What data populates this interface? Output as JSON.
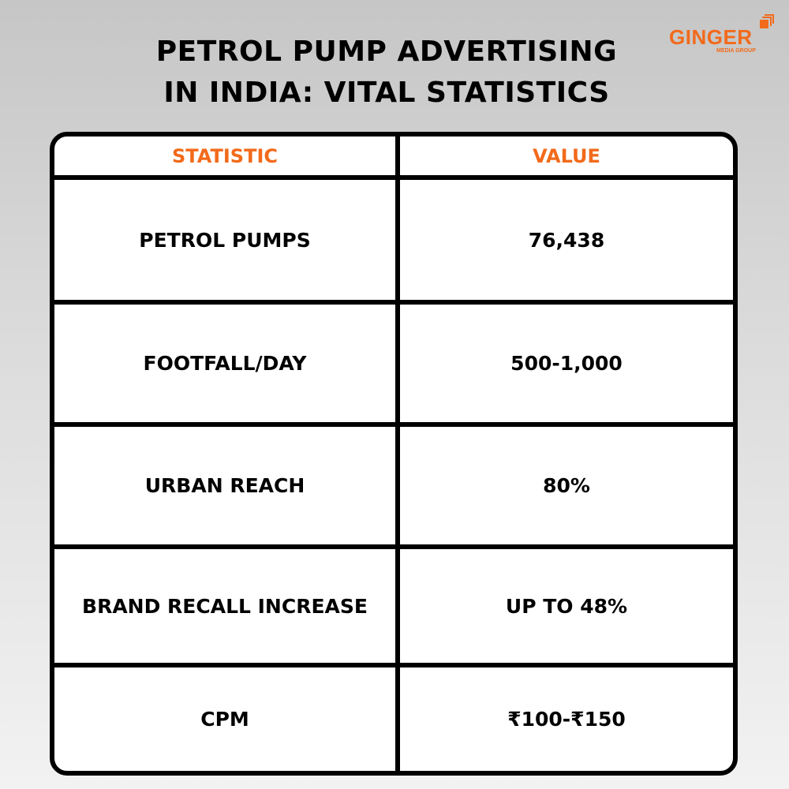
{
  "title": {
    "line1": "PETROL PUMP ADVERTISING",
    "line2": "IN INDIA: VITAL STATISTICS"
  },
  "logo": {
    "text": "GINGER",
    "subtext": "MEDIA GROUP"
  },
  "colors": {
    "accent": "#f26a1b",
    "border": "#000000"
  },
  "table": {
    "headers": [
      "STATISTIC",
      "VALUE"
    ],
    "rows": [
      [
        "PETROL PUMPS",
        "76,438"
      ],
      [
        "FOOTFALL/DAY",
        "500-1,000"
      ],
      [
        "URBAN REACH",
        "80%"
      ],
      [
        "BRAND RECALL INCREASE",
        "UP TO 48%"
      ],
      [
        "CPM",
        "₹100-₹150"
      ]
    ]
  }
}
